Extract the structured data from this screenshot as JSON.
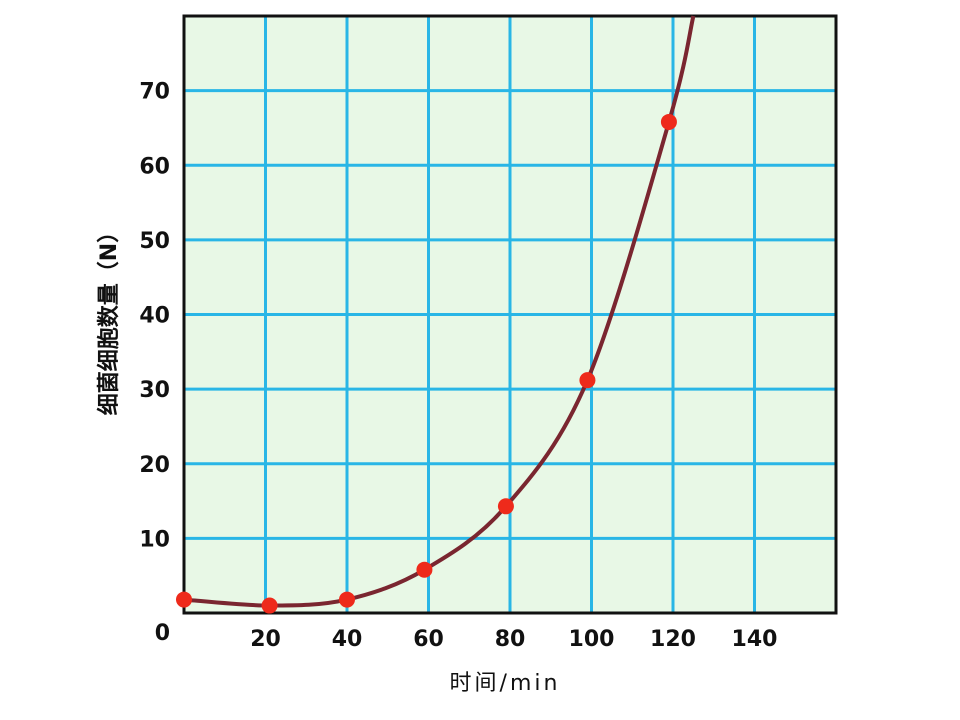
{
  "chart_data": {
    "type": "line",
    "title": "",
    "xlabel": "时间/min",
    "ylabel": "细菌细胞数量（N）",
    "xlim": [
      0,
      160
    ],
    "ylim": [
      0,
      80
    ],
    "grid": true,
    "x_ticks": [
      {
        "value": 0,
        "label": ""
      },
      {
        "value": 20,
        "label": "20"
      },
      {
        "value": 40,
        "label": "40"
      },
      {
        "value": 60,
        "label": "60"
      },
      {
        "value": 80,
        "label": "80"
      },
      {
        "value": 100,
        "label": "100"
      },
      {
        "value": 120,
        "label": "120"
      },
      {
        "value": 140,
        "label": "140"
      }
    ],
    "y_ticks": [
      {
        "value": 0,
        "label": "0"
      },
      {
        "value": 10,
        "label": "10"
      },
      {
        "value": 20,
        "label": "20"
      },
      {
        "value": 30,
        "label": "30"
      },
      {
        "value": 40,
        "label": "40"
      },
      {
        "value": 50,
        "label": "50"
      },
      {
        "value": 60,
        "label": "60"
      },
      {
        "value": 70,
        "label": "70"
      }
    ],
    "points": [
      {
        "x": 0,
        "y": 1.8
      },
      {
        "x": 21,
        "y": 1
      },
      {
        "x": 40,
        "y": 1.8
      },
      {
        "x": 59,
        "y": 5.8
      },
      {
        "x": 79,
        "y": 14.3
      },
      {
        "x": 99,
        "y": 31.2
      },
      {
        "x": 119,
        "y": 65.8
      }
    ],
    "curve_extends_to": {
      "x": 125,
      "y": 80
    },
    "colors": {
      "plot_background": "#e8f8e6",
      "grid": "#29b6e6",
      "curve": "#7a2630",
      "marker": "#ee2a1b",
      "axes": "#111111"
    }
  }
}
